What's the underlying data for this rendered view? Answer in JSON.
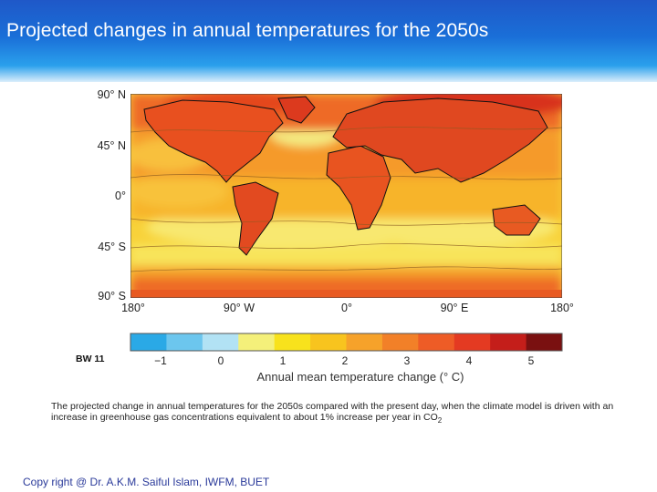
{
  "slide": {
    "title": "Projected changes in annual temperatures for the 2050s",
    "bw_label": "BW 11",
    "caption_main": "The projected change in annual temperatures for the 2050s compared with the present day, when the climate model is driven with an increase in greenhouse gas concentrations equivalent to about 1% increase per year in CO",
    "caption_sub": "2",
    "copyright": "Copy right @ Dr. A.K.M. Saiful Islam, IWFM, BUET"
  },
  "map": {
    "lat_labels": [
      "90° N",
      "45° N",
      "0°",
      "45° S",
      "90° S"
    ],
    "lon_labels": [
      "180°",
      "90° W",
      "0°",
      "90° E",
      "180°"
    ]
  },
  "colorbar": {
    "title": "Annual mean temperature change (° C)",
    "tick_labels": [
      "−1",
      "0",
      "1",
      "2",
      "3",
      "4",
      "5"
    ],
    "colors": [
      "#2aa9e6",
      "#6cc6ee",
      "#b2e2f4",
      "#f4f07a",
      "#f8e21c",
      "#f8c41e",
      "#f6a22a",
      "#f28028",
      "#ee5c26",
      "#e43a22",
      "#c41e1a",
      "#7a1010"
    ]
  }
}
